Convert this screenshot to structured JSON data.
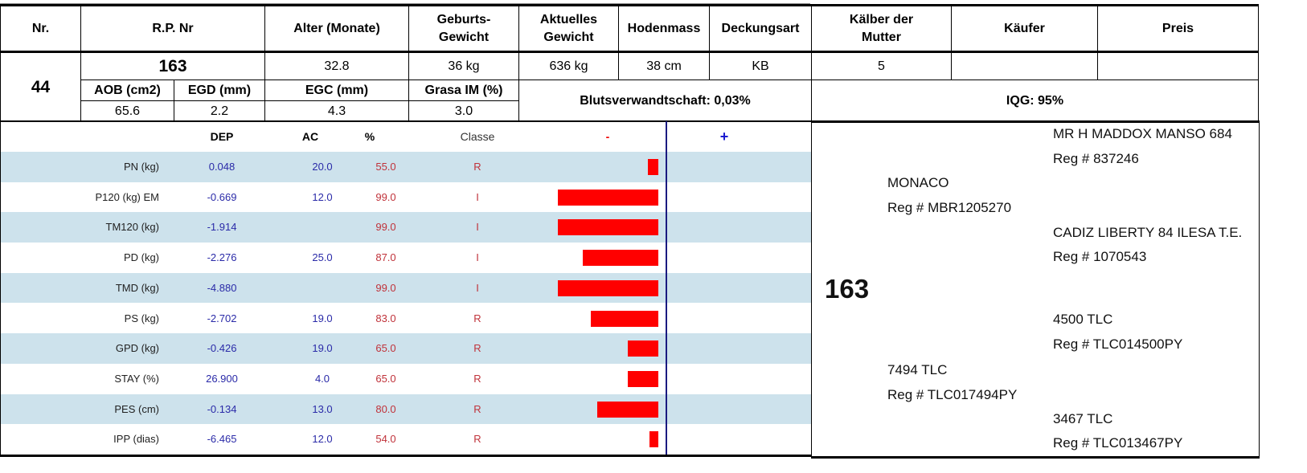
{
  "header": {
    "nr": "Nr.",
    "rp": "R.P. Nr",
    "alter": "Alter (Monate)",
    "geburts1": "Geburts-",
    "geburts2": "Gewicht",
    "akt1": "Aktuelles",
    "akt2": "Gewicht",
    "hoden": "Hodenmass",
    "deckung": "Deckungsart",
    "kalber1": "Kälber der",
    "kalber2": "Mutter",
    "kaufer": "Käufer",
    "preis": "Preis"
  },
  "animal": {
    "nr": "44",
    "rp": "163",
    "alter": "32.8",
    "geburts": "36 kg",
    "aktuelles": "636 kg",
    "hoden": "38 cm",
    "deckung": "KB",
    "kalber": "5",
    "kaufer": "",
    "preis": ""
  },
  "carcass": {
    "labels": [
      "AOB (cm2)",
      "EGD (mm)",
      "EGC (mm)",
      "Grasa IM (%)"
    ],
    "values": [
      "65.6",
      "2.2",
      "4.3",
      "3.0"
    ],
    "bluts": "Blutsverwandtschaft: 0,03%",
    "iqg": "IQG: 95%"
  },
  "dep_table": {
    "headers": {
      "dep": "DEP",
      "ac": "AC",
      "pct": "%",
      "classe": "Classe",
      "minus": "-",
      "plus": "+"
    },
    "rows": [
      {
        "label": "PN (kg)",
        "dep": "0.048",
        "ac": "20.0",
        "pct": "55.0",
        "classe": "R",
        "bar": 0.1
      },
      {
        "label": "P120 (kg) EM",
        "dep": "-0.669",
        "ac": "12.0",
        "pct": "99.0",
        "classe": "I",
        "bar": 1.0
      },
      {
        "label": "TM120 (kg)",
        "dep": "-1.914",
        "ac": "",
        "pct": "99.0",
        "classe": "I",
        "bar": 1.0
      },
      {
        "label": "PD (kg)",
        "dep": "-2.276",
        "ac": "25.0",
        "pct": "87.0",
        "classe": "I",
        "bar": 0.75
      },
      {
        "label": "TMD (kg)",
        "dep": "-4.880",
        "ac": "",
        "pct": "99.0",
        "classe": "I",
        "bar": 1.0
      },
      {
        "label": "PS (kg)",
        "dep": "-2.702",
        "ac": "19.0",
        "pct": "83.0",
        "classe": "R",
        "bar": 0.67
      },
      {
        "label": "GPD (kg)",
        "dep": "-0.426",
        "ac": "19.0",
        "pct": "65.0",
        "classe": "R",
        "bar": 0.3
      },
      {
        "label": "STAY (%)",
        "dep": "26.900",
        "ac": "4.0",
        "pct": "65.0",
        "classe": "R",
        "bar": 0.3
      },
      {
        "label": "PES (cm)",
        "dep": "-0.134",
        "ac": "13.0",
        "pct": "80.0",
        "classe": "R",
        "bar": 0.61
      },
      {
        "label": "IPP (dias)",
        "dep": "-6.465",
        "ac": "12.0",
        "pct": "54.0",
        "classe": "R",
        "bar": 0.09
      }
    ],
    "bar_color": "#ff0000"
  },
  "pedigree": {
    "animal": "163",
    "sire": {
      "name": "MONACO",
      "reg": "Reg # MBR1205270"
    },
    "sire_sire": {
      "name": "MR H MADDOX MANSO 684",
      "reg": "Reg # 837246"
    },
    "sire_dam": {
      "name": "CADIZ LIBERTY 84 ILESA T.E.",
      "reg": "Reg # 1070543"
    },
    "dam": {
      "name": "7494 TLC",
      "reg": "Reg # TLC017494PY"
    },
    "dam_sire": {
      "name": "4500 TLC",
      "reg": "Reg # TLC014500PY"
    },
    "dam_dam": {
      "name": "3467 TLC",
      "reg": "Reg # TLC013467PY"
    }
  }
}
